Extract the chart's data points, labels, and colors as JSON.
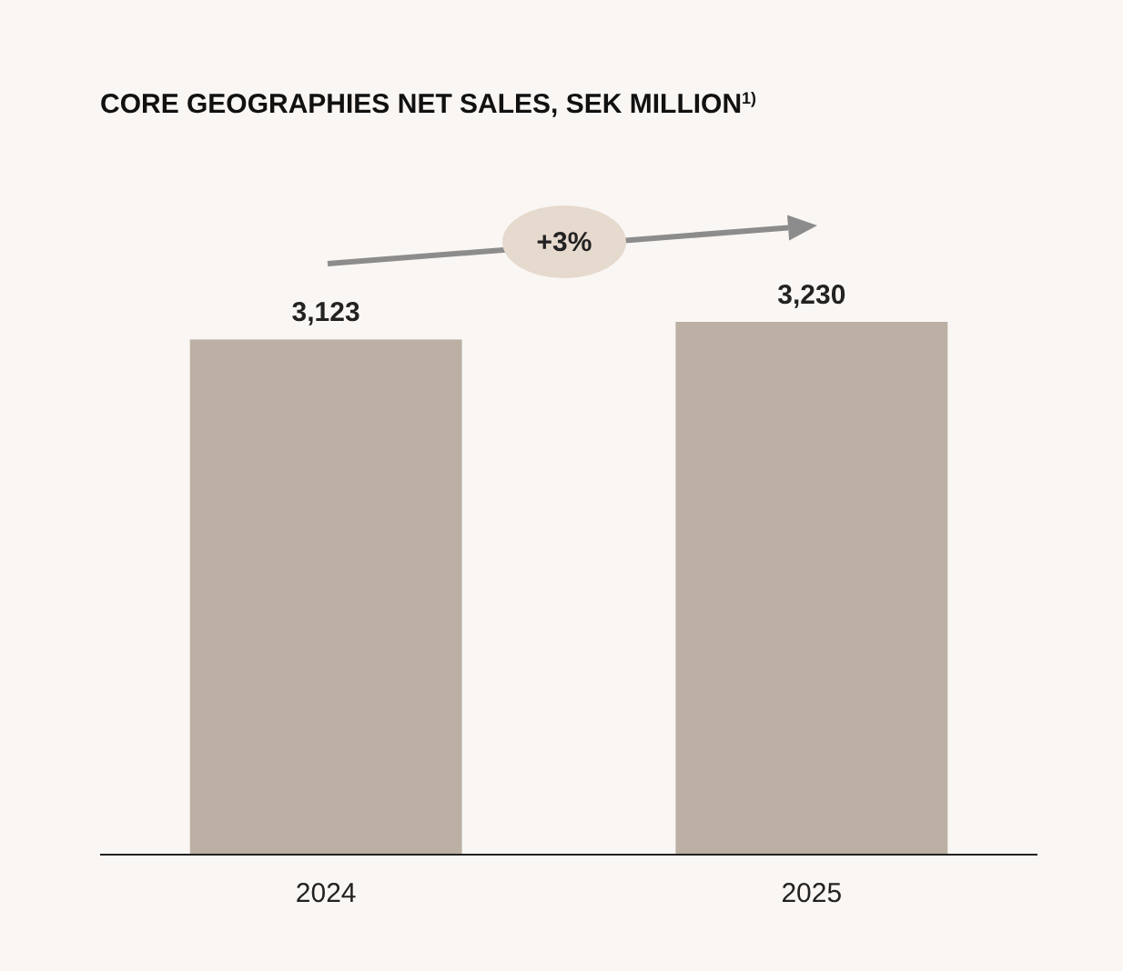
{
  "chart_data": {
    "type": "bar",
    "title": "CORE GEOGRAPHIES NET SALES, SEK MILLION$^{1)}$",
    "categories": [
      "2024",
      "2025"
    ],
    "values": [
      3123,
      3230
    ],
    "color": "#bcb0a4",
    "value_labels": [
      "3,123",
      "3,230"
    ],
    "annotations": [
      "+3%"
    ]
  }
}
